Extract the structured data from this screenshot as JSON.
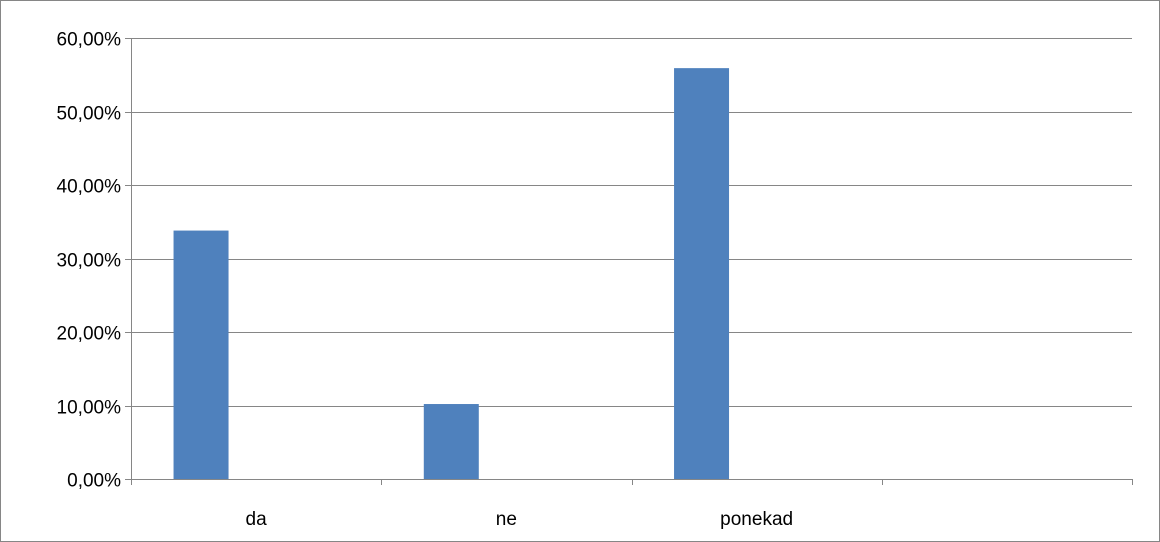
{
  "chart_data": {
    "type": "bar",
    "categories": [
      "da",
      "ne",
      "ponekad",
      ""
    ],
    "values": [
      33.8,
      10.2,
      55.9,
      null
    ],
    "y_tick_labels": [
      "0,00%",
      "10,00%",
      "20,00%",
      "30,00%",
      "40,00%",
      "50,00%",
      "60,00%"
    ],
    "ylim": [
      0,
      60
    ],
    "y_step": 10,
    "grid": true,
    "legend": "none",
    "colors": {
      "bar": "#4F81BD",
      "grid": "#868686",
      "axis": "#868686",
      "frame": "#868686"
    }
  }
}
